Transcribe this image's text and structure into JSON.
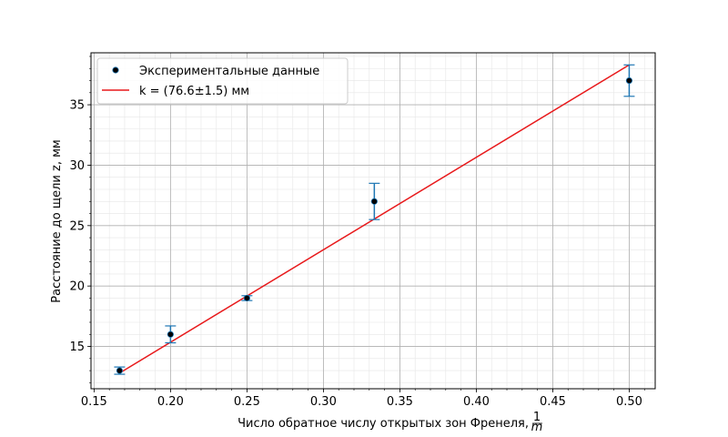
{
  "chart_data": {
    "type": "scatter",
    "xlabel": "Число обратное числу открытых зон Френеля,",
    "xlabel_fraction": {
      "numerator": "1",
      "denominator": "m"
    },
    "ylabel": "Расстояние до щели z, мм",
    "xlim": [
      0.148,
      0.517
    ],
    "ylim": [
      11.5,
      39.3
    ],
    "x_ticks": [
      0.15,
      0.2,
      0.25,
      0.3,
      0.35,
      0.4,
      0.45,
      0.5
    ],
    "x_tick_labels": [
      "0.15",
      "0.20",
      "0.25",
      "0.30",
      "0.35",
      "0.40",
      "0.45",
      "0.50"
    ],
    "y_ticks": [
      15,
      20,
      25,
      30,
      35
    ],
    "y_tick_labels": [
      "15",
      "20",
      "25",
      "30",
      "35"
    ],
    "grid": {
      "major": true,
      "minor": true
    },
    "legend_position": "top-left",
    "series": [
      {
        "name": "Экспериментальные данные",
        "kind": "errorbar",
        "marker_color": "#000000",
        "marker_edge_color": "#1f77b4",
        "error_color": "#1f77b4",
        "points": [
          {
            "x": 0.1667,
            "y": 13.0,
            "yerr": 0.3
          },
          {
            "x": 0.2,
            "y": 16.0,
            "yerr": 0.7
          },
          {
            "x": 0.25,
            "y": 19.0,
            "yerr": 0.2
          },
          {
            "x": 0.3333,
            "y": 27.0,
            "yerr": 1.5
          },
          {
            "x": 0.5,
            "y": 37.0,
            "yerr": 1.3
          }
        ]
      },
      {
        "name": "k = (76.6±1.5) мм",
        "kind": "line",
        "color": "#e8191b",
        "x": [
          0.1667,
          0.5
        ],
        "y": [
          12.8,
          38.3
        ]
      }
    ]
  }
}
